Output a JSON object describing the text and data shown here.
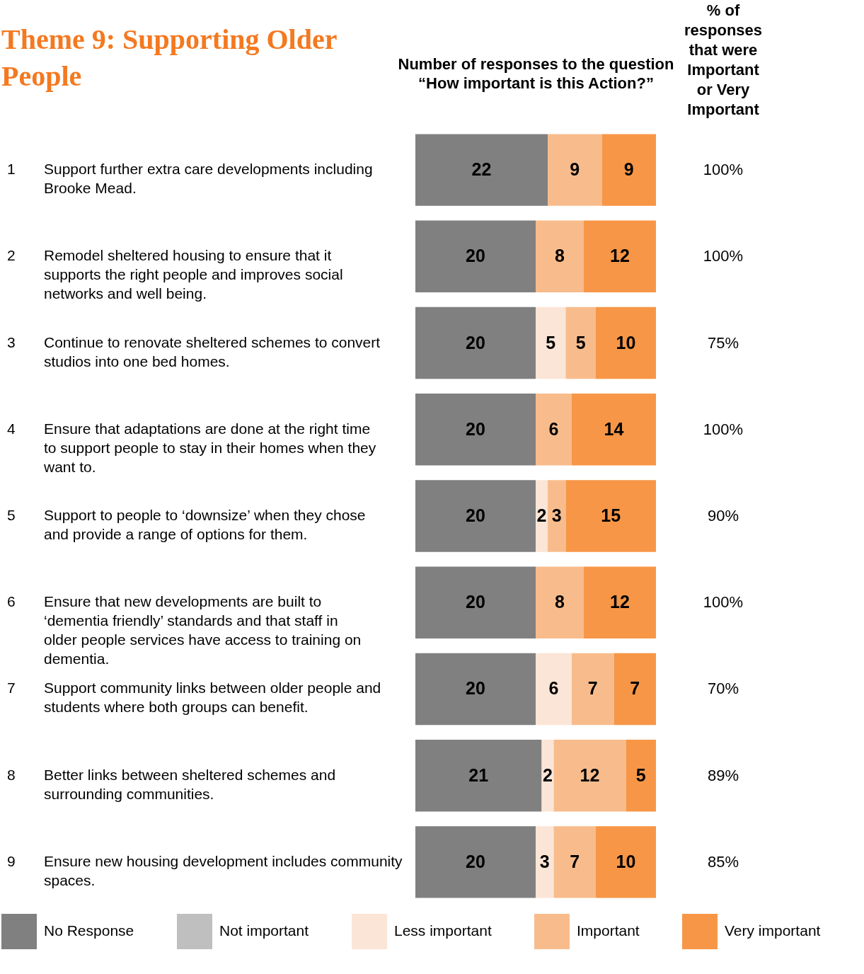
{
  "chart_data": {
    "type": "bar",
    "orientation": "horizontal",
    "stacked": true,
    "title": "Theme 9: Supporting Older People",
    "xlabel": "Number of responses to the question “How important is this Action?”",
    "categories": [
      "1 Support further extra care developments including Brooke Mead.",
      "2 Remodel sheltered housing to ensure that it supports the right people and improves social networks and well being.",
      "3 Continue to renovate sheltered schemes to convert studios into one bed homes.",
      "4 Ensure that adaptations are done at the right time to support people to stay in their homes when they want to.",
      "5 Support to people to ‘downsize’ when they chose and provide a range of options for them.",
      "6 Ensure that new developments are built to ‘dementia friendly’ standards and that staff in older people services have access to training on dementia.",
      "7 Support community links between older people and students where both groups can benefit.",
      "8 Better links between sheltered schemes and surrounding communities.",
      "9 Ensure new housing development includes community spaces."
    ],
    "series": [
      {
        "name": "No Response",
        "color": "#808080",
        "values": [
          22,
          20,
          20,
          20,
          20,
          20,
          20,
          21,
          20
        ]
      },
      {
        "name": "Not important",
        "color": "#bfbfbf",
        "values": [
          null,
          null,
          null,
          null,
          null,
          null,
          null,
          null,
          null
        ]
      },
      {
        "name": "Less important",
        "color": "#fbe5d6",
        "values": [
          null,
          null,
          5,
          null,
          2,
          null,
          6,
          2,
          3
        ]
      },
      {
        "name": "Important",
        "color": "#f8bc8c",
        "values": [
          9,
          8,
          5,
          6,
          3,
          8,
          7,
          12,
          7
        ]
      },
      {
        "name": "Very important",
        "color": "#f79646",
        "values": [
          9,
          12,
          10,
          14,
          15,
          12,
          7,
          5,
          10
        ]
      }
    ],
    "xlim": [
      0,
      40
    ],
    "tick_labels": false,
    "data_labels": true,
    "legend": "bottom",
    "grid": false,
    "annotations": [
      "% of responses that were Important or Very Important",
      "100%",
      "100%",
      "75%",
      "100%",
      "90%",
      "100%",
      "70%",
      "89%",
      "85%"
    ]
  }
}
